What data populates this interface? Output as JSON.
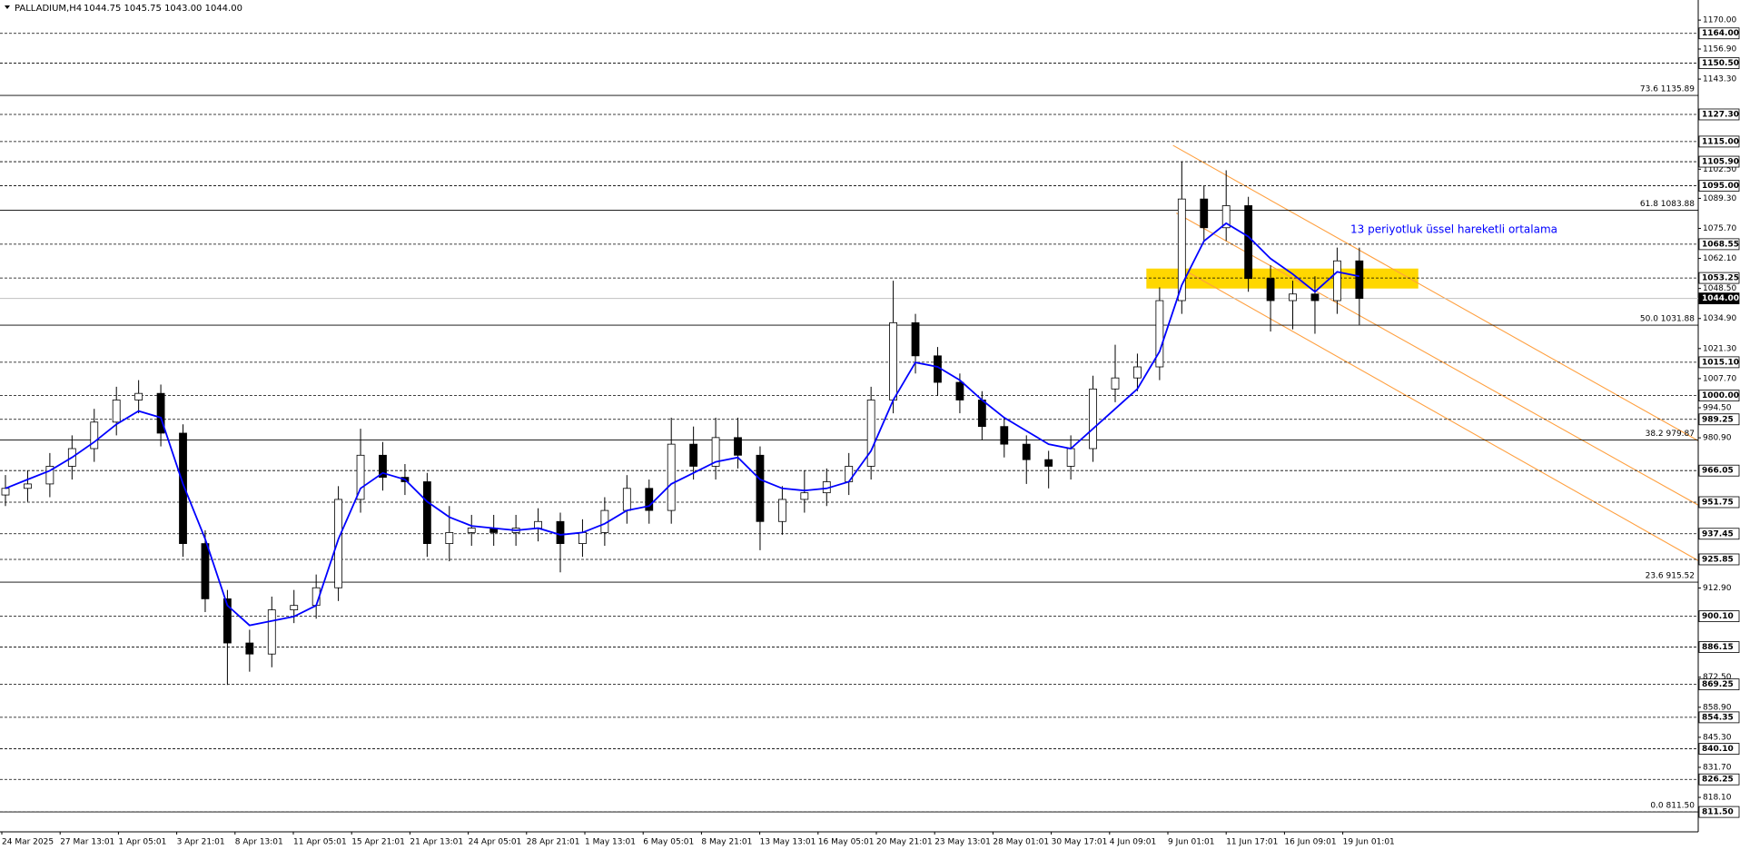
{
  "chart_data": {
    "type": "candlestick",
    "title": "PALLADIUM,H4",
    "quote": "1044.75 1045.75 1043.00 1044.00",
    "date_labels": [
      "24 Mar 2025",
      "27 Mar 13:01",
      "1 Apr 05:01",
      "3 Apr 21:01",
      "8 Apr 13:01",
      "11 Apr 05:01",
      "15 Apr 21:01",
      "21 Apr 13:01",
      "24 Apr 05:01",
      "28 Apr 21:01",
      "1 May 13:01",
      "6 May 05:01",
      "8 May 21:01",
      "13 May 13:01",
      "16 May 05:01",
      "20 May 21:01",
      "23 May 13:01",
      "28 May 01:01",
      "30 May 17:01",
      "4 Jun 09:01",
      "9 Jun 01:01",
      "11 Jun 17:01",
      "16 Jun 09:01",
      "19 Jun 01:01"
    ],
    "open": [
      955,
      958,
      960,
      968,
      976,
      988,
      998,
      1001,
      983,
      933,
      908,
      888,
      883,
      903,
      905,
      913,
      953,
      973,
      963,
      961,
      933,
      938,
      940,
      938,
      940,
      943,
      933,
      938,
      948,
      958,
      948,
      978,
      968,
      981,
      973,
      943,
      953,
      956,
      961,
      968,
      998,
      1033,
      1018,
      1006,
      998,
      986,
      978,
      971,
      968,
      976,
      1003,
      1008,
      1013,
      1043,
      1089,
      1076,
      1086,
      1053,
      1043,
      1046,
      1043,
      1061
    ],
    "high": [
      964,
      966,
      974,
      982,
      994,
      1004,
      1007,
      1005,
      987,
      939,
      912,
      894,
      909,
      912,
      919,
      959,
      985,
      979,
      969,
      965,
      950,
      946,
      946,
      946,
      949,
      947,
      944,
      954,
      964,
      962,
      990,
      986,
      990,
      990,
      977,
      959,
      966,
      967,
      974,
      1004,
      1052,
      1037,
      1022,
      1010,
      1002,
      990,
      982,
      975,
      982,
      1009,
      1023,
      1019,
      1049,
      1106,
      1095,
      1102,
      1090,
      1059,
      1052,
      1054,
      1067,
      1067
    ],
    "low": [
      950,
      952,
      954,
      962,
      970,
      982,
      992,
      977,
      927,
      902,
      869,
      875,
      877,
      897,
      899,
      907,
      947,
      957,
      955,
      927,
      925,
      932,
      932,
      932,
      934,
      920,
      927,
      932,
      942,
      942,
      942,
      962,
      962,
      967,
      930,
      937,
      947,
      950,
      955,
      962,
      992,
      1010,
      1000,
      992,
      980,
      972,
      960,
      958,
      962,
      970,
      997,
      1002,
      1007,
      1037,
      1070,
      1070,
      1047,
      1029,
      1030,
      1028,
      1037,
      1032
    ],
    "close": [
      958,
      960,
      968,
      976,
      988,
      998,
      1001,
      983,
      933,
      908,
      888,
      883,
      903,
      905,
      913,
      953,
      973,
      963,
      961,
      933,
      938,
      940,
      938,
      940,
      943,
      933,
      938,
      948,
      958,
      948,
      978,
      968,
      981,
      973,
      943,
      953,
      956,
      961,
      968,
      998,
      1033,
      1018,
      1006,
      998,
      986,
      978,
      971,
      968,
      976,
      1003,
      1008,
      1013,
      1043,
      1089,
      1076,
      1086,
      1053,
      1043,
      1046,
      1043,
      1061,
      1044
    ],
    "series": [
      {
        "name": "13 periyotluk üssel hareketli ortalama",
        "color": "#0000ff",
        "values": [
          958,
          962,
          966,
          972,
          979,
          987,
          993,
          990,
          960,
          935,
          905,
          896,
          898,
          900,
          905,
          935,
          958,
          965,
          962,
          952,
          945,
          941,
          940,
          939,
          940,
          937,
          938,
          942,
          948,
          950,
          960,
          965,
          970,
          972,
          962,
          958,
          957,
          958,
          961,
          975,
          998,
          1015,
          1013,
          1007,
          998,
          990,
          984,
          978,
          976,
          985,
          994,
          1003,
          1020,
          1050,
          1070,
          1078,
          1072,
          1062,
          1055,
          1047,
          1056,
          1054
        ]
      }
    ],
    "ylim": [
      802.5,
      1179.1
    ],
    "yticks": [
      {
        "value": 1170,
        "label": "1170.00"
      },
      {
        "value": 1156.9,
        "label": "1156.90"
      },
      {
        "value": 1143.3,
        "label": "1143.30"
      },
      {
        "value": 1102.5,
        "label": "1102.50"
      },
      {
        "value": 1089.3,
        "label": "1089.30"
      },
      {
        "value": 1075.7,
        "label": "1075.70"
      },
      {
        "value": 1062.1,
        "label": "1062.10"
      },
      {
        "value": 1048.5,
        "label": "1048.50"
      },
      {
        "value": 1034.9,
        "label": "1034.90"
      },
      {
        "value": 1021.3,
        "label": "1021.30"
      },
      {
        "value": 1007.7,
        "label": "1007.70"
      },
      {
        "value": 994.5,
        "label": "994.50"
      },
      {
        "value": 980.9,
        "label": "980.90"
      },
      {
        "value": 912.9,
        "label": "912.90"
      },
      {
        "value": 872.5,
        "label": "872.50"
      },
      {
        "value": 858.9,
        "label": "858.90"
      },
      {
        "value": 845.3,
        "label": "845.30"
      },
      {
        "value": 831.7,
        "label": "831.70"
      },
      {
        "value": 818.1,
        "label": "818.10"
      }
    ],
    "levels": [
      {
        "value": 1164,
        "label": "1164.00"
      },
      {
        "value": 1150.5,
        "label": "1150.50"
      },
      {
        "value": 1127.3,
        "label": "1127.30"
      },
      {
        "value": 1115,
        "label": "1115.00"
      },
      {
        "value": 1105.9,
        "label": "1105.90"
      },
      {
        "value": 1095,
        "label": "1095.00"
      },
      {
        "value": 1068.55,
        "label": "1068.55"
      },
      {
        "value": 1053.25,
        "label": "1053.25"
      },
      {
        "value": 1015.1,
        "label": "1015.10"
      },
      {
        "value": 1000,
        "label": "1000.00"
      },
      {
        "value": 989.25,
        "label": "989.25"
      },
      {
        "value": 966.05,
        "label": "966.05"
      },
      {
        "value": 951.75,
        "label": "951.75"
      },
      {
        "value": 937.45,
        "label": "937.45"
      },
      {
        "value": 925.85,
        "label": "925.85"
      },
      {
        "value": 900.1,
        "label": "900.10"
      },
      {
        "value": 886.15,
        "label": "886.15"
      },
      {
        "value": 869.25,
        "label": "869.25"
      },
      {
        "value": 854.35,
        "label": "854.35"
      },
      {
        "value": 840.1,
        "label": "840.10"
      },
      {
        "value": 826.25,
        "label": "826.25"
      },
      {
        "value": 811.5,
        "label": "811.50"
      }
    ],
    "current_price": {
      "value": 1044,
      "label": "1044.00"
    },
    "fib_levels": [
      {
        "value": 1135.89,
        "label": "73.6 1135.89"
      },
      {
        "value": 1083.88,
        "label": "61.8 1083.88"
      },
      {
        "value": 1031.88,
        "label": "50.0 1031.88"
      },
      {
        "value": 979.87,
        "label": "38.2 979.87"
      },
      {
        "value": 915.52,
        "label": "23.6 915.52"
      },
      {
        "value": 811.5,
        "label": "0.0 811.50"
      }
    ]
  }
}
